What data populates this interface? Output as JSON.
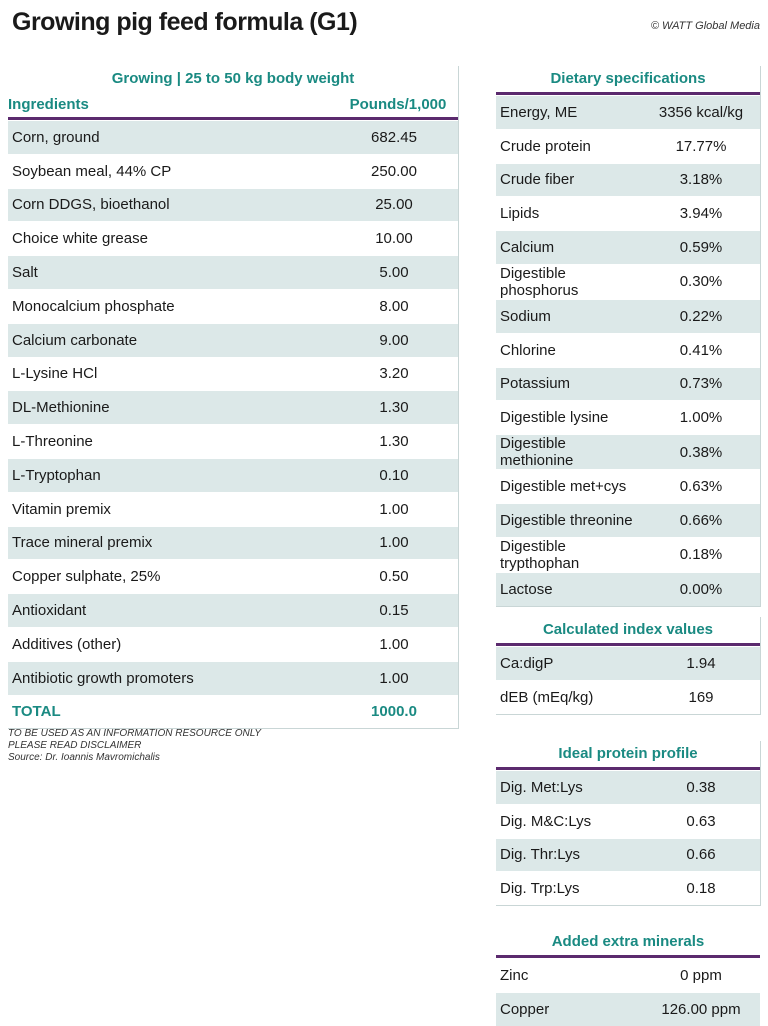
{
  "title": "Growing pig feed formula (G1)",
  "credit": "© WATT Global Media",
  "ingredients_table": {
    "section_title": "Growing | 25 to 50 kg body weight",
    "col_name": "Ingredients",
    "col_value": "Pounds/1,000",
    "rows": [
      {
        "name": "Corn, ground",
        "value": "682.45"
      },
      {
        "name": "Soybean meal, 44% CP",
        "value": "250.00"
      },
      {
        "name": "Corn DDGS, bioethanol",
        "value": "25.00"
      },
      {
        "name": "Choice white grease",
        "value": "10.00"
      },
      {
        "name": "Salt",
        "value": "5.00"
      },
      {
        "name": "Monocalcium phosphate",
        "value": "8.00"
      },
      {
        "name": "Calcium carbonate",
        "value": "9.00"
      },
      {
        "name": "L-Lysine HCl",
        "value": "3.20"
      },
      {
        "name": "DL-Methionine",
        "value": "1.30"
      },
      {
        "name": "L-Threonine",
        "value": "1.30"
      },
      {
        "name": "L-Tryptophan",
        "value": "0.10"
      },
      {
        "name": "Vitamin premix",
        "value": "1.00"
      },
      {
        "name": "Trace mineral premix",
        "value": "1.00"
      },
      {
        "name": "Copper sulphate, 25%",
        "value": "0.50"
      },
      {
        "name": "Antioxidant",
        "value": "0.15"
      },
      {
        "name": "Additives (other)",
        "value": "1.00"
      },
      {
        "name": "Antibiotic growth promoters",
        "value": "1.00"
      }
    ],
    "total_label": "TOTAL",
    "total_value": "1000.0"
  },
  "notes": [
    "TO BE USED AS AN INFORMATION RESOURCE ONLY",
    "PLEASE READ DISCLAIMER",
    "Source: Dr. Ioannis Mavromichalis"
  ],
  "dietary_specs": {
    "section_title": "Dietary specifications",
    "rows": [
      {
        "name": "Energy, ME",
        "value": "3356 kcal/kg"
      },
      {
        "name": "Crude protein",
        "value": "17.77%"
      },
      {
        "name": "Crude fiber",
        "value": "3.18%"
      },
      {
        "name": "Lipids",
        "value": "3.94%"
      },
      {
        "name": "Calcium",
        "value": "0.59%"
      },
      {
        "name": "Digestible phosphorus",
        "value": "0.30%"
      },
      {
        "name": "Sodium",
        "value": "0.22%"
      },
      {
        "name": "Chlorine",
        "value": "0.41%"
      },
      {
        "name": "Potassium",
        "value": "0.73%"
      },
      {
        "name": "Digestible lysine",
        "value": "1.00%"
      },
      {
        "name": "Digestible methionine",
        "value": "0.38%"
      },
      {
        "name": "Digestible met+cys",
        "value": "0.63%"
      },
      {
        "name": "Digestible threonine",
        "value": "0.66%"
      },
      {
        "name": "Digestible trypthophan",
        "value": "0.18%"
      },
      {
        "name": "Lactose",
        "value": "0.00%"
      }
    ]
  },
  "index_values": {
    "section_title": "Calculated index values",
    "rows": [
      {
        "name": "Ca:digP",
        "value": "1.94"
      },
      {
        "name": "dEB (mEq/kg)",
        "value": "169"
      }
    ]
  },
  "protein_profile": {
    "section_title": "Ideal protein profile",
    "rows": [
      {
        "name": "Dig. Met:Lys",
        "value": "0.38"
      },
      {
        "name": "Dig. M&C:Lys",
        "value": "0.63"
      },
      {
        "name": "Dig. Thr:Lys",
        "value": "0.66"
      },
      {
        "name": "Dig. Trp:Lys",
        "value": "0.18"
      }
    ]
  },
  "extra_minerals": {
    "section_title": "Added extra minerals",
    "rows": [
      {
        "name": "Zinc",
        "value": "0 ppm"
      },
      {
        "name": "Copper",
        "value": "126.00 ppm"
      }
    ]
  }
}
